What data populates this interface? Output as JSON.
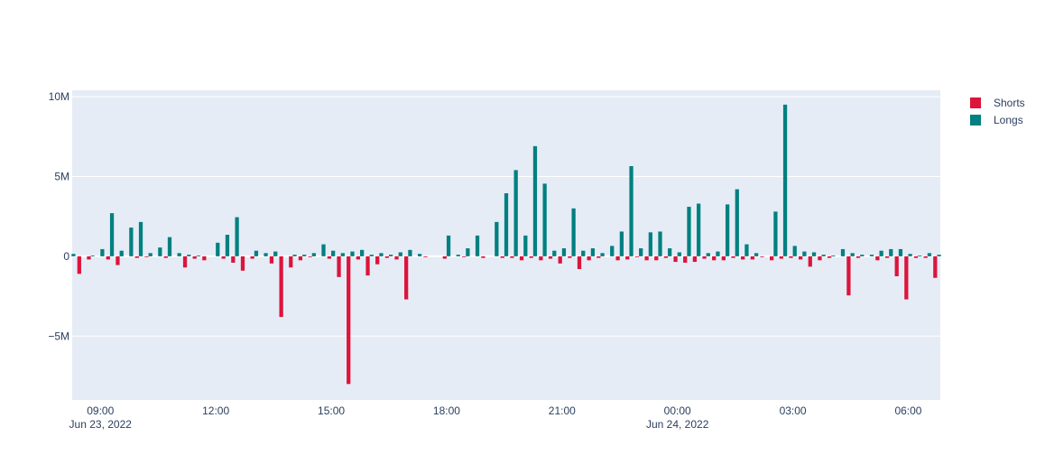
{
  "chart_data": {
    "type": "bar",
    "bar_mode": "overlay-grouped",
    "x_axis": {
      "type": "date",
      "range": [
        "2022-06-23 08:16",
        "2022-06-24 06:50"
      ],
      "ticks": [
        {
          "value": "2022-06-23 09:00",
          "label": "09:00",
          "sublabel": "Jun 23, 2022"
        },
        {
          "value": "2022-06-23 12:00",
          "label": "12:00",
          "sublabel": ""
        },
        {
          "value": "2022-06-23 15:00",
          "label": "15:00",
          "sublabel": ""
        },
        {
          "value": "2022-06-23 18:00",
          "label": "18:00",
          "sublabel": ""
        },
        {
          "value": "2022-06-23 21:00",
          "label": "21:00",
          "sublabel": ""
        },
        {
          "value": "2022-06-24 00:00",
          "label": "00:00",
          "sublabel": "Jun 24, 2022"
        },
        {
          "value": "2022-06-24 03:00",
          "label": "03:00",
          "sublabel": ""
        },
        {
          "value": "2022-06-24 06:00",
          "label": "06:00",
          "sublabel": ""
        }
      ]
    },
    "y_axis": {
      "range": [
        -9000000,
        10400000
      ],
      "ticks": [
        {
          "value": 10000000,
          "label": "10M"
        },
        {
          "value": 5000000,
          "label": "5M"
        },
        {
          "value": 0,
          "label": "0"
        },
        {
          "value": -5000000,
          "label": "−5M"
        }
      ],
      "grid": true
    },
    "legend": {
      "position": "top-right"
    },
    "series": [
      {
        "name": "Shorts",
        "color": "#dc143c",
        "points": [
          [
            "2022-06-23 08:30",
            -1100000
          ],
          [
            "2022-06-23 08:45",
            -200000
          ],
          [
            "2022-06-23 09:15",
            -200000
          ],
          [
            "2022-06-23 09:30",
            -550000
          ],
          [
            "2022-06-23 10:00",
            -100000
          ],
          [
            "2022-06-23 10:15",
            -50000
          ],
          [
            "2022-06-23 10:45",
            -100000
          ],
          [
            "2022-06-23 11:15",
            -700000
          ],
          [
            "2022-06-23 11:30",
            -150000
          ],
          [
            "2022-06-23 11:45",
            -250000
          ],
          [
            "2022-06-23 12:15",
            -150000
          ],
          [
            "2022-06-23 12:30",
            -400000
          ],
          [
            "2022-06-23 12:45",
            -900000
          ],
          [
            "2022-06-23 13:00",
            -150000
          ],
          [
            "2022-06-23 13:30",
            -450000
          ],
          [
            "2022-06-23 13:45",
            -3800000
          ],
          [
            "2022-06-23 14:00",
            -700000
          ],
          [
            "2022-06-23 14:15",
            -250000
          ],
          [
            "2022-06-23 14:30",
            -50000
          ],
          [
            "2022-06-23 15:00",
            -150000
          ],
          [
            "2022-06-23 15:15",
            -1300000
          ],
          [
            "2022-06-23 15:30",
            -8000000
          ],
          [
            "2022-06-23 15:45",
            -200000
          ],
          [
            "2022-06-23 16:00",
            -1200000
          ],
          [
            "2022-06-23 16:15",
            -500000
          ],
          [
            "2022-06-23 16:30",
            -100000
          ],
          [
            "2022-06-23 16:45",
            -200000
          ],
          [
            "2022-06-23 17:00",
            -2700000
          ],
          [
            "2022-06-23 17:30",
            -50000
          ],
          [
            "2022-06-23 18:00",
            -150000
          ],
          [
            "2022-06-23 18:30",
            -50000
          ],
          [
            "2022-06-23 19:00",
            -100000
          ],
          [
            "2022-06-23 19:30",
            -100000
          ],
          [
            "2022-06-23 19:45",
            -100000
          ],
          [
            "2022-06-23 20:00",
            -250000
          ],
          [
            "2022-06-23 20:15",
            -100000
          ],
          [
            "2022-06-23 20:30",
            -250000
          ],
          [
            "2022-06-23 20:45",
            -150000
          ],
          [
            "2022-06-23 21:00",
            -450000
          ],
          [
            "2022-06-23 21:15",
            -100000
          ],
          [
            "2022-06-23 21:30",
            -800000
          ],
          [
            "2022-06-23 21:45",
            -250000
          ],
          [
            "2022-06-23 22:00",
            -100000
          ],
          [
            "2022-06-23 22:30",
            -250000
          ],
          [
            "2022-06-23 22:45",
            -200000
          ],
          [
            "2022-06-23 23:00",
            -50000
          ],
          [
            "2022-06-23 23:15",
            -250000
          ],
          [
            "2022-06-23 23:30",
            -250000
          ],
          [
            "2022-06-23 23:45",
            -100000
          ],
          [
            "2022-06-24 00:00",
            -350000
          ],
          [
            "2022-06-24 00:15",
            -400000
          ],
          [
            "2022-06-24 00:30",
            -350000
          ],
          [
            "2022-06-24 00:45",
            -150000
          ],
          [
            "2022-06-24 01:00",
            -250000
          ],
          [
            "2022-06-24 01:15",
            -250000
          ],
          [
            "2022-06-24 01:30",
            -100000
          ],
          [
            "2022-06-24 01:45",
            -200000
          ],
          [
            "2022-06-24 02:00",
            -200000
          ],
          [
            "2022-06-24 02:15",
            -50000
          ],
          [
            "2022-06-24 02:30",
            -250000
          ],
          [
            "2022-06-24 02:45",
            -150000
          ],
          [
            "2022-06-24 03:00",
            -100000
          ],
          [
            "2022-06-24 03:15",
            -200000
          ],
          [
            "2022-06-24 03:30",
            -650000
          ],
          [
            "2022-06-24 03:45",
            -250000
          ],
          [
            "2022-06-24 04:00",
            -100000
          ],
          [
            "2022-06-24 04:30",
            -2450000
          ],
          [
            "2022-06-24 04:45",
            -100000
          ],
          [
            "2022-06-24 05:15",
            -250000
          ],
          [
            "2022-06-24 05:30",
            -100000
          ],
          [
            "2022-06-24 05:45",
            -1250000
          ],
          [
            "2022-06-24 06:00",
            -2700000
          ],
          [
            "2022-06-24 06:15",
            -100000
          ],
          [
            "2022-06-24 06:30",
            -100000
          ],
          [
            "2022-06-24 06:45",
            -1350000
          ]
        ]
      },
      {
        "name": "Longs",
        "color": "#008080",
        "points": [
          [
            "2022-06-23 08:15",
            150000
          ],
          [
            "2022-06-23 08:45",
            50000
          ],
          [
            "2022-06-23 09:00",
            450000
          ],
          [
            "2022-06-23 09:15",
            2700000
          ],
          [
            "2022-06-23 09:30",
            350000
          ],
          [
            "2022-06-23 09:45",
            1800000
          ],
          [
            "2022-06-23 10:00",
            2150000
          ],
          [
            "2022-06-23 10:15",
            200000
          ],
          [
            "2022-06-23 10:30",
            550000
          ],
          [
            "2022-06-23 10:45",
            1200000
          ],
          [
            "2022-06-23 11:00",
            200000
          ],
          [
            "2022-06-23 11:15",
            100000
          ],
          [
            "2022-06-23 11:30",
            50000
          ],
          [
            "2022-06-23 12:00",
            850000
          ],
          [
            "2022-06-23 12:15",
            1350000
          ],
          [
            "2022-06-23 12:30",
            2450000
          ],
          [
            "2022-06-23 13:00",
            350000
          ],
          [
            "2022-06-23 13:15",
            200000
          ],
          [
            "2022-06-23 13:30",
            300000
          ],
          [
            "2022-06-23 14:00",
            100000
          ],
          [
            "2022-06-23 14:15",
            100000
          ],
          [
            "2022-06-23 14:30",
            200000
          ],
          [
            "2022-06-23 14:45",
            750000
          ],
          [
            "2022-06-23 15:00",
            350000
          ],
          [
            "2022-06-23 15:15",
            200000
          ],
          [
            "2022-06-23 15:30",
            300000
          ],
          [
            "2022-06-23 15:45",
            400000
          ],
          [
            "2022-06-23 16:00",
            100000
          ],
          [
            "2022-06-23 16:15",
            200000
          ],
          [
            "2022-06-23 16:30",
            100000
          ],
          [
            "2022-06-23 16:45",
            250000
          ],
          [
            "2022-06-23 17:00",
            400000
          ],
          [
            "2022-06-23 17:15",
            150000
          ],
          [
            "2022-06-23 18:00",
            1300000
          ],
          [
            "2022-06-23 18:15",
            100000
          ],
          [
            "2022-06-23 18:30",
            500000
          ],
          [
            "2022-06-23 18:45",
            1300000
          ],
          [
            "2022-06-23 19:15",
            2150000
          ],
          [
            "2022-06-23 19:30",
            3950000
          ],
          [
            "2022-06-23 19:45",
            5400000
          ],
          [
            "2022-06-23 20:00",
            1300000
          ],
          [
            "2022-06-23 20:15",
            6900000
          ],
          [
            "2022-06-23 20:30",
            4550000
          ],
          [
            "2022-06-23 20:45",
            350000
          ],
          [
            "2022-06-23 21:00",
            500000
          ],
          [
            "2022-06-23 21:15",
            3000000
          ],
          [
            "2022-06-23 21:30",
            350000
          ],
          [
            "2022-06-23 21:45",
            500000
          ],
          [
            "2022-06-23 22:00",
            200000
          ],
          [
            "2022-06-23 22:15",
            650000
          ],
          [
            "2022-06-23 22:30",
            1550000
          ],
          [
            "2022-06-23 22:45",
            5650000
          ],
          [
            "2022-06-23 23:00",
            500000
          ],
          [
            "2022-06-23 23:15",
            1500000
          ],
          [
            "2022-06-23 23:30",
            1550000
          ],
          [
            "2022-06-23 23:45",
            500000
          ],
          [
            "2022-06-24 00:00",
            250000
          ],
          [
            "2022-06-24 00:15",
            3100000
          ],
          [
            "2022-06-24 00:30",
            3300000
          ],
          [
            "2022-06-24 00:45",
            200000
          ],
          [
            "2022-06-24 01:00",
            300000
          ],
          [
            "2022-06-24 01:15",
            3250000
          ],
          [
            "2022-06-24 01:30",
            4200000
          ],
          [
            "2022-06-24 01:45",
            750000
          ],
          [
            "2022-06-24 02:00",
            200000
          ],
          [
            "2022-06-24 02:30",
            2800000
          ],
          [
            "2022-06-24 02:45",
            9500000
          ],
          [
            "2022-06-24 03:00",
            650000
          ],
          [
            "2022-06-24 03:15",
            300000
          ],
          [
            "2022-06-24 03:30",
            250000
          ],
          [
            "2022-06-24 03:45",
            100000
          ],
          [
            "2022-06-24 04:00",
            50000
          ],
          [
            "2022-06-24 04:15",
            450000
          ],
          [
            "2022-06-24 04:30",
            200000
          ],
          [
            "2022-06-24 04:45",
            100000
          ],
          [
            "2022-06-24 05:00",
            100000
          ],
          [
            "2022-06-24 05:15",
            350000
          ],
          [
            "2022-06-24 05:30",
            450000
          ],
          [
            "2022-06-24 05:45",
            450000
          ],
          [
            "2022-06-24 06:00",
            150000
          ],
          [
            "2022-06-24 06:15",
            50000
          ],
          [
            "2022-06-24 06:30",
            200000
          ],
          [
            "2022-06-24 06:45",
            100000
          ]
        ]
      }
    ]
  }
}
